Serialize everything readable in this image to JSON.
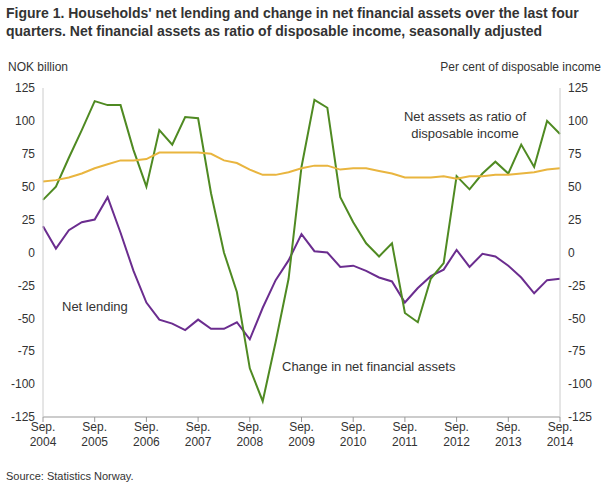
{
  "chart_data": {
    "type": "line",
    "title": "Figure 1. Households' net lending and change in net financial assets over the last four quarters. Net financial assets as ratio of disposable income, seasonally adjusted",
    "y_label": "NOK billion",
    "y2_label": "Per cent of disposable income",
    "source": "Source: Statistics Norway.",
    "categories": [
      "Sep. 2004",
      null,
      null,
      null,
      "Sep. 2005",
      null,
      null,
      null,
      "Sep. 2006",
      null,
      null,
      null,
      "Sep. 2007",
      null,
      null,
      null,
      "Sep. 2008",
      null,
      null,
      null,
      "Sep. 2009",
      null,
      null,
      null,
      "Sep. 2010",
      null,
      null,
      null,
      "Sep. 2011",
      null,
      null,
      null,
      "Sep. 2012",
      null,
      null,
      null,
      "Sep. 2013",
      null,
      null,
      null,
      "Sep. 2014"
    ],
    "series": [
      {
        "name": "Net lending",
        "color": "#6b2d8f",
        "axis": "y",
        "values": [
          20,
          3,
          17,
          23,
          25,
          42,
          15,
          -14,
          -38,
          -51,
          -54,
          -59,
          -51,
          -58,
          -58,
          -53,
          -66,
          -42,
          -21,
          -6,
          14,
          1,
          0,
          -11,
          -10,
          -14,
          -19,
          -22,
          -38,
          -27,
          -18,
          -13,
          2,
          -11,
          -1,
          -3,
          -10,
          -19,
          -31,
          -21,
          -20
        ]
      },
      {
        "name": "Change in net financial assets",
        "color": "#4f8a22",
        "axis": "y",
        "values": [
          40,
          50,
          72,
          93,
          115,
          112,
          112,
          78,
          50,
          93,
          82,
          103,
          102,
          45,
          0,
          -30,
          -88,
          -113,
          -68,
          -20,
          65,
          116,
          110,
          42,
          23,
          7,
          -3,
          7,
          -46,
          -53,
          -20,
          -8,
          58,
          48,
          60,
          69,
          60,
          82,
          65,
          100,
          90
        ]
      },
      {
        "name": "Net assets as ratio of disposable income",
        "color": "#e9b53f",
        "axis": "y2",
        "values": [
          54,
          55,
          57,
          60,
          64,
          67,
          70,
          70,
          71,
          76,
          76,
          76,
          76,
          75,
          70,
          68,
          63,
          59,
          59,
          61,
          64,
          66,
          66,
          63,
          64,
          64,
          62,
          60,
          57,
          57,
          57,
          58,
          56,
          58,
          58,
          59,
          59,
          60,
          61,
          63,
          64
        ]
      }
    ],
    "ylim": [
      -125,
      125
    ],
    "yticks": [
      -125,
      -100,
      -75,
      -50,
      -25,
      0,
      25,
      50,
      75,
      100,
      125
    ],
    "y2lim": [
      -125,
      125
    ],
    "y2ticks": [
      -125,
      -100,
      -75,
      -50,
      -25,
      0,
      25,
      50,
      75,
      100,
      125
    ],
    "grid": false
  }
}
